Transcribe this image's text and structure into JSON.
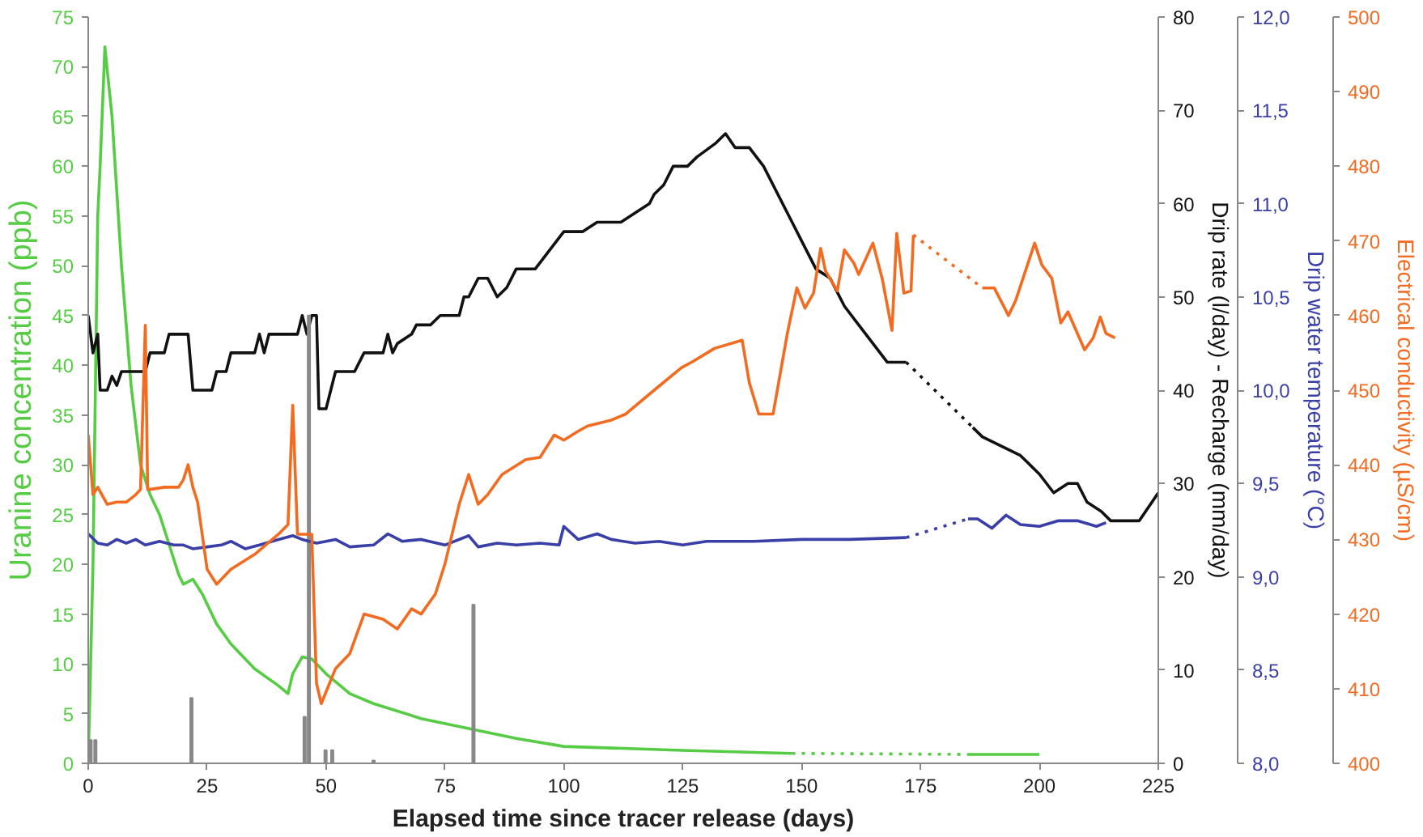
{
  "chart_data": [
    {
      "type": "line",
      "xlabel": "Elapsed time since tracer release (days)",
      "ylabel": "Uranine concentration (ppb)",
      "y2label": "Drip rate (l/day) - Recharge (mm/day)",
      "y3label": "Drip water temperature (°C)",
      "xlim": [
        0,
        225
      ],
      "xticks": [
        0,
        25,
        50,
        75,
        100,
        125,
        150,
        175,
        200,
        225
      ],
      "ylim": [
        0,
        75
      ],
      "yticks": [
        0,
        5,
        10,
        15,
        20,
        25,
        30,
        35,
        40,
        45,
        50,
        55,
        60,
        65,
        70,
        75
      ],
      "y2lim": [
        0,
        80
      ],
      "y2ticks": [
        0,
        10,
        20,
        30,
        40,
        50,
        60,
        70,
        80
      ],
      "y3lim": [
        8,
        12
      ],
      "y3ticks": [
        {
          "value": 8,
          "label": "8,0"
        },
        {
          "value": 8.5,
          "label": "8,5"
        },
        {
          "value": 9,
          "label": "9,0"
        },
        {
          "value": 9.5,
          "label": "9,5"
        },
        {
          "value": 10,
          "label": "10,0"
        },
        {
          "value": 10.5,
          "label": "10,5"
        },
        {
          "value": 11,
          "label": "11,0"
        },
        {
          "value": 11.5,
          "label": "11,5"
        },
        {
          "value": 12,
          "label": "12,0"
        }
      ],
      "grid": false,
      "series": [
        {
          "axis": "y",
          "color": "#55cc44",
          "x": [
            0,
            1,
            2,
            2.5,
            3.5,
            5,
            7,
            9,
            11,
            13,
            15,
            17,
            19,
            20,
            22,
            24,
            27,
            30,
            35,
            40,
            42,
            43,
            45,
            47,
            50,
            55,
            60,
            70,
            80,
            90,
            100,
            125,
            148
          ],
          "values": [
            0,
            20,
            55,
            60,
            72,
            65,
            50,
            38,
            30,
            27,
            25,
            22,
            19,
            18,
            18.5,
            17,
            14,
            12,
            9.5,
            7.8,
            7,
            9,
            10.7,
            10.5,
            9,
            7,
            6,
            4.5,
            3.5,
            2.5,
            1.7,
            1.3,
            1
          ]
        },
        {
          "axis": "y",
          "color": "#55cc44",
          "line_style": "dotted",
          "x": [
            148,
            185
          ],
          "values": [
            1,
            0.9
          ]
        },
        {
          "axis": "y",
          "color": "#55cc44",
          "x": [
            185,
            200
          ],
          "values": [
            0.9,
            0.9
          ]
        },
        {
          "axis": "y2",
          "color": "#111111",
          "x": [
            0,
            1,
            2,
            2.5,
            4,
            5,
            6,
            7,
            12,
            13,
            16,
            17,
            21,
            22,
            26,
            27,
            29,
            30,
            35,
            36,
            37,
            38,
            44,
            45,
            46,
            47,
            48,
            48.5,
            50,
            52,
            56,
            58,
            62,
            63,
            64,
            65,
            68,
            69,
            72,
            74,
            78,
            79,
            80,
            82,
            84,
            86,
            88,
            90,
            94,
            97,
            100,
            104,
            107,
            112,
            118,
            119,
            121,
            123,
            126,
            128,
            132,
            134,
            136,
            139,
            142,
            145,
            148,
            150,
            153,
            156,
            159,
            162,
            165,
            168,
            172
          ],
          "values": [
            48,
            44,
            46,
            40,
            40,
            41.5,
            40.5,
            42,
            42,
            44,
            44,
            46,
            46,
            40,
            40,
            42,
            42,
            44,
            44,
            46,
            44,
            46,
            46,
            48,
            46,
            48,
            48,
            38,
            38,
            42,
            42,
            44,
            44,
            46,
            44,
            45,
            46,
            47,
            47,
            48,
            48,
            50,
            50,
            52,
            52,
            50,
            51,
            53,
            53,
            55,
            57,
            57,
            58,
            58,
            60,
            61,
            62,
            64,
            64,
            65,
            66.5,
            67.5,
            66,
            66,
            64,
            61,
            58,
            56,
            53,
            52,
            49,
            47,
            45,
            43,
            43
          ]
        },
        {
          "axis": "y2",
          "color": "#111111",
          "line_style": "dotted",
          "x": [
            172,
            186
          ],
          "values": [
            43,
            36
          ]
        },
        {
          "axis": "y2",
          "color": "#111111",
          "x": [
            186,
            188,
            192,
            196,
            200,
            203,
            206,
            208,
            210,
            213,
            215,
            221,
            225
          ],
          "values": [
            36,
            35,
            34,
            33,
            31,
            29,
            30,
            30,
            28,
            27,
            26,
            26,
            29
          ]
        },
        {
          "type": "bar",
          "axis": "y2",
          "color": "#888888",
          "x": [
            0.5,
            1.5,
            21.7,
            45.5,
            46.4,
            49.9,
            51.3,
            60,
            81
          ],
          "values": [
            2.5,
            2.5,
            7,
            5,
            48,
            1.4,
            1.4,
            0.3,
            17
          ]
        },
        {
          "axis": "y3",
          "color": "#3a3fa8",
          "x": [
            0,
            2,
            4,
            6,
            8,
            10,
            12,
            15,
            18,
            20,
            22,
            25,
            28,
            30,
            33,
            36,
            40,
            43,
            45,
            48,
            52,
            55,
            60,
            63,
            66,
            70,
            75,
            80,
            82,
            86,
            90,
            95,
            99,
            100,
            103,
            107,
            110,
            115,
            120,
            125,
            130,
            140,
            150,
            160,
            172
          ],
          "values": [
            9.23,
            9.18,
            9.17,
            9.2,
            9.18,
            9.2,
            9.17,
            9.19,
            9.17,
            9.17,
            9.15,
            9.16,
            9.17,
            9.19,
            9.15,
            9.17,
            9.2,
            9.22,
            9.2,
            9.18,
            9.2,
            9.16,
            9.17,
            9.23,
            9.19,
            9.2,
            9.17,
            9.22,
            9.16,
            9.18,
            9.17,
            9.18,
            9.17,
            9.27,
            9.2,
            9.23,
            9.2,
            9.18,
            9.19,
            9.17,
            9.19,
            9.19,
            9.2,
            9.2,
            9.21
          ]
        },
        {
          "axis": "y3",
          "color": "#3a3fa8",
          "line_style": "dotted",
          "x": [
            172,
            185
          ],
          "values": [
            9.21,
            9.31
          ]
        },
        {
          "axis": "y3",
          "color": "#3a3fa8",
          "x": [
            185,
            187,
            190,
            193,
            196,
            200,
            204,
            208,
            212,
            214
          ],
          "values": [
            9.31,
            9.31,
            9.26,
            9.33,
            9.28,
            9.27,
            9.3,
            9.3,
            9.27,
            9.29
          ]
        }
      ]
    },
    {
      "type": "line",
      "ylabel": "Electrical conductivity (µS/cm)",
      "xlim": [
        0,
        225
      ],
      "ylim": [
        400,
        500
      ],
      "yticks": [
        400,
        410,
        420,
        430,
        440,
        450,
        460,
        470,
        480,
        490,
        500
      ],
      "tick_labels": "y",
      "series": [
        {
          "color": "#f26b21",
          "x": [
            0,
            1,
            2,
            4,
            6,
            8,
            10,
            11,
            12,
            12.5,
            13,
            16,
            19,
            20,
            21,
            22,
            23,
            25,
            27,
            30,
            35,
            40,
            42,
            43,
            44,
            47,
            48,
            49,
            52,
            55,
            58,
            62,
            65,
            68,
            70,
            73,
            75,
            78,
            80,
            82,
            84,
            87,
            92,
            95,
            98,
            100,
            103,
            105,
            110,
            113,
            119,
            124.7,
            127,
            131.7,
            137.5,
            139,
            141,
            144,
            147,
            149,
            150.7,
            152.5,
            154,
            155,
            157.5,
            159,
            161,
            162,
            165,
            167,
            169,
            170,
            171.5,
            173,
            173.5
          ],
          "values": [
            444,
            436,
            437,
            434.7,
            435,
            435,
            436,
            436.7,
            458.7,
            436.7,
            436.7,
            437,
            437,
            438,
            440,
            437,
            435,
            426,
            424,
            426,
            428,
            430.7,
            432,
            448,
            430.7,
            430.7,
            410.7,
            408,
            412.7,
            414.7,
            420,
            419.3,
            418,
            420.7,
            420,
            422.7,
            426.7,
            434.7,
            438.7,
            434.7,
            436,
            438.7,
            440.7,
            441,
            444,
            443.3,
            444.5,
            445.2,
            446,
            446.8,
            450,
            453,
            453.8,
            455.6,
            456.7,
            451,
            446.8,
            446.8,
            457.6,
            463.7,
            461,
            463,
            469,
            466,
            463.3,
            468.8,
            467,
            465.5,
            469.7,
            464.8,
            458,
            471,
            463,
            463.3,
            470.8
          ]
        },
        {
          "color": "#f26b21",
          "line_style": "dotted",
          "x": [
            173.5,
            188
          ],
          "values": [
            470.8,
            463.7
          ]
        },
        {
          "color": "#f26b21",
          "x": [
            188,
            190.5,
            193.5,
            195,
            199,
            200.5,
            202.6,
            204.5,
            206,
            209.5,
            211.3,
            212.8,
            214,
            215.9
          ],
          "values": [
            463.7,
            463.7,
            460,
            462,
            469.7,
            466.8,
            465,
            459,
            460.5,
            455.4,
            457,
            459.8,
            457.6,
            457
          ]
        }
      ]
    }
  ]
}
